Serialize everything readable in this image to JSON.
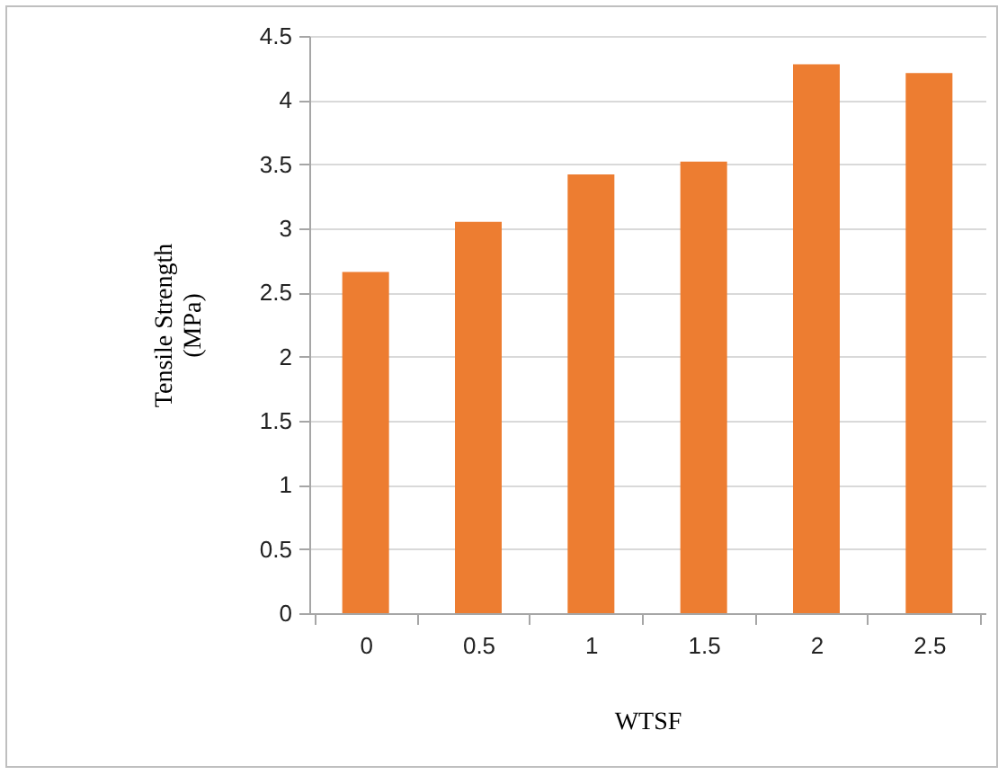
{
  "chart_data": {
    "type": "bar",
    "xlabel": "WTSF",
    "ylabel": "Tensile Strength (MPa)",
    "categories": [
      "0",
      "0.5",
      "1",
      "1.5",
      "2",
      "2.5"
    ],
    "values": [
      2.66,
      3.05,
      3.42,
      3.52,
      4.28,
      4.21
    ],
    "color": "#ed7d31",
    "ylim": [
      0,
      4.5
    ],
    "yticks": [
      0,
      0.5,
      1,
      1.5,
      2,
      2.5,
      3,
      3.5,
      4,
      4.5
    ],
    "grid": "y"
  }
}
